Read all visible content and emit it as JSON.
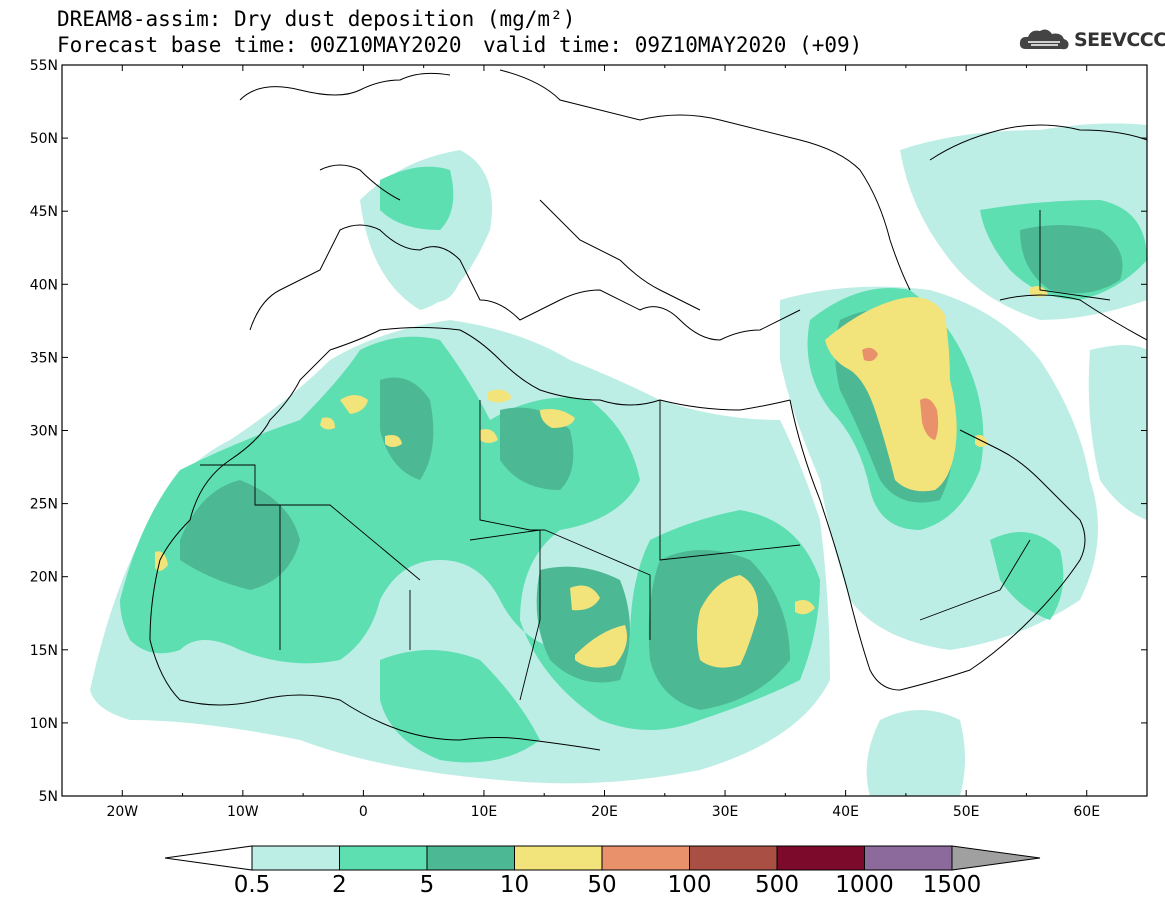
{
  "title": {
    "line1": "DREAM8-assim: Dry dust deposition (mg/m²)",
    "line2": "Forecast base time: 00Z10MAY2020",
    "line3": "valid time: 09Z10MAY2020 (+09)"
  },
  "logo": {
    "text": "SEEVCCC",
    "icon": "cloud-icon"
  },
  "map": {
    "lat_labels": [
      "55N",
      "50N",
      "45N",
      "40N",
      "35N",
      "30N",
      "25N",
      "20N",
      "15N",
      "10N",
      "5N"
    ],
    "lon_labels": [
      "20W",
      "10W",
      "0",
      "10E",
      "20E",
      "30E",
      "40E",
      "50E",
      "60E"
    ],
    "lat_range": [
      5,
      55
    ],
    "lon_range": [
      -25,
      65
    ]
  },
  "colorbar": {
    "labels": [
      "0.5",
      "2",
      "5",
      "10",
      "50",
      "100",
      "500",
      "1000",
      "1500"
    ],
    "colors": [
      "#bdeee5",
      "#5edfb2",
      "#4db894",
      "#f2e37a",
      "#e9916b",
      "#aa4f44",
      "#7c0a2b",
      "#8c6a9c"
    ],
    "under_color": "#ffffff",
    "over_color": "#a0a0a0"
  },
  "legend_levels": {
    "level1": "#bdeee5",
    "level2": "#5edfb2",
    "level3": "#4db894",
    "level4": "#f2e37a",
    "level5": "#e9916b"
  }
}
